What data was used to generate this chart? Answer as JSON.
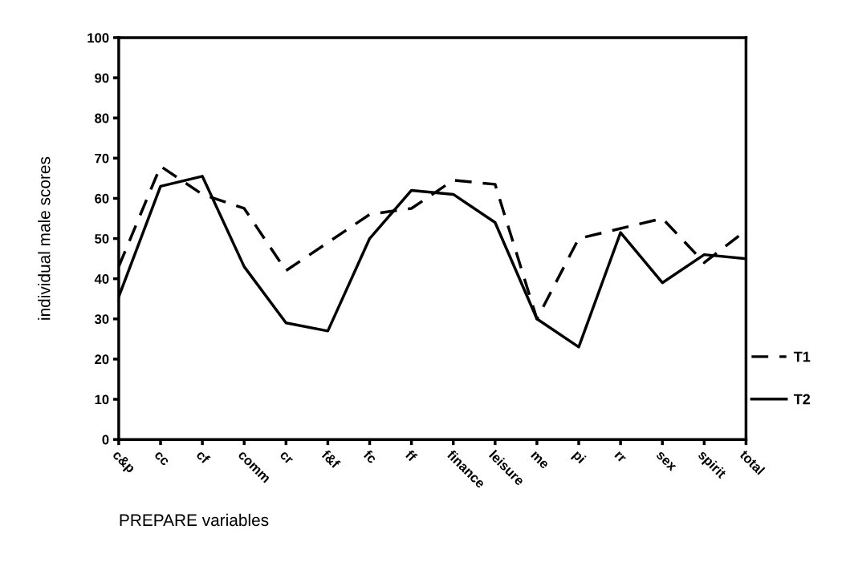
{
  "chart_data": {
    "type": "line",
    "xlabel": "PREPARE variables",
    "ylabel": "individual male scores",
    "categories": [
      "c&p",
      "cc",
      "cf",
      "comm",
      "cr",
      "f&f",
      "fc",
      "ff",
      "finance",
      "leisure",
      "me",
      "pi",
      "rr",
      "sex",
      "spirit",
      "total"
    ],
    "series": [
      {
        "name": "T1",
        "color": "#000000",
        "line_style": "dashed",
        "values": [
          43,
          68,
          61,
          57.5,
          42,
          49,
          56,
          57.5,
          64.5,
          63.5,
          30,
          50,
          52.5,
          55,
          44,
          52
        ]
      },
      {
        "name": "T2",
        "color": "#000000",
        "line_style": "solid",
        "values": [
          35.5,
          63,
          65.5,
          43,
          29,
          27,
          50,
          62,
          61,
          54,
          30,
          23,
          51.5,
          39,
          46,
          45
        ]
      }
    ],
    "ylim": [
      0,
      100
    ],
    "yticks": [
      0,
      10,
      20,
      30,
      40,
      50,
      60,
      70,
      80,
      90,
      100
    ],
    "grid": false,
    "legend": "right",
    "marker": "none"
  }
}
